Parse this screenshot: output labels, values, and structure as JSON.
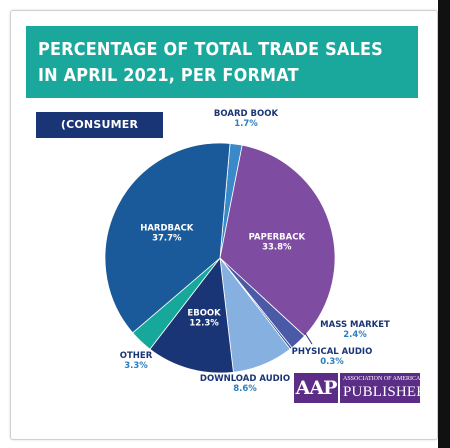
{
  "title_line1": "PERCENTAGE OF TOTAL TRADE SALES",
  "title_line2": "IN APRIL 2021, PER FORMAT",
  "subtitle": "(CONSUMER BOOKS)",
  "logo": {
    "mark": "AAP",
    "name_line1": "ASSOCIATION OF AMERICAN",
    "name_line2": "PUBLISHERS"
  },
  "colors": {
    "title_bg": "#1ba89c",
    "subtitle_bg": "#1a3575",
    "logo_bg": "#5b2d86",
    "label_name": "#1a3575",
    "label_value": "#2b7fc1"
  },
  "chart_data": {
    "type": "pie",
    "title": "PERCENTAGE OF TOTAL TRADE SALES IN APRIL 2021, PER FORMAT",
    "subtitle": "(CONSUMER BOOKS)",
    "slices": [
      {
        "label": "BOARD BOOK",
        "value": 1.7,
        "value_label": "1.7%",
        "color": "#3a89c9",
        "label_inside": false
      },
      {
        "label": "PAPERBACK",
        "value": 33.8,
        "value_label": "33.8%",
        "color": "#7e4ca0",
        "label_inside": true
      },
      {
        "label": "MASS MARKET",
        "value": 2.4,
        "value_label": "2.4%",
        "color": "#4a5aa6",
        "label_inside": false
      },
      {
        "label": "PHYSICAL AUDIO",
        "value": 0.3,
        "value_label": "0.3%",
        "color": "#2a4f99",
        "label_inside": false
      },
      {
        "label": "DOWNLOAD AUDIO",
        "value": 8.6,
        "value_label": "8.6%",
        "color": "#86b0e0",
        "label_inside": false
      },
      {
        "label": "EBOOK",
        "value": 12.3,
        "value_label": "12.3%",
        "color": "#1a3575",
        "label_inside": true
      },
      {
        "label": "OTHER",
        "value": 3.3,
        "value_label": "3.3%",
        "color": "#16a99b",
        "label_inside": false
      },
      {
        "label": "HARDBACK",
        "value": 37.7,
        "value_label": "37.7%",
        "color": "#1a5a9a",
        "label_inside": true
      }
    ]
  }
}
